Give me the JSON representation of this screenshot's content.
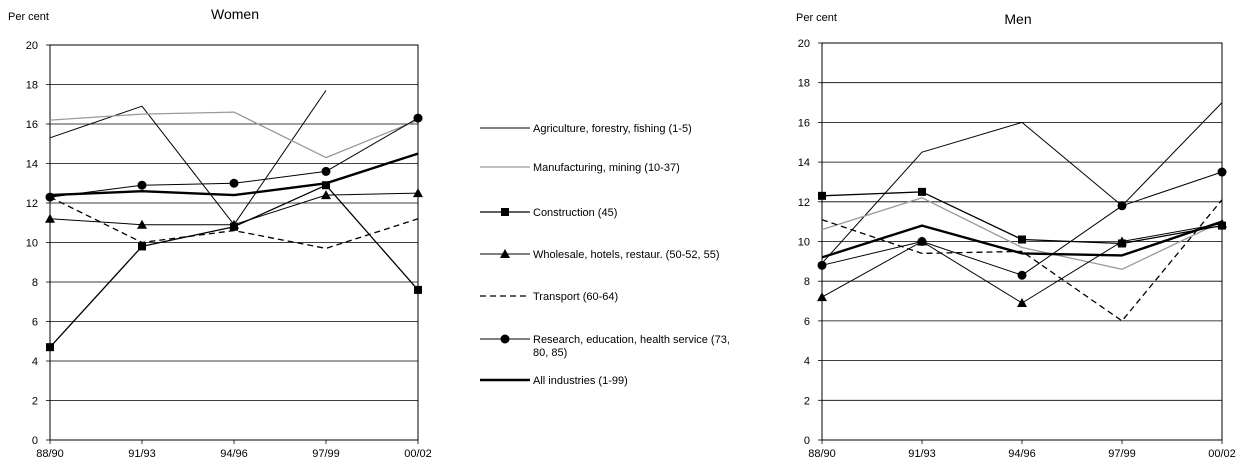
{
  "chart_data": [
    {
      "type": "line",
      "title": "Women",
      "ylabel": "Per cent",
      "categories": [
        "88/90",
        "91/93",
        "94/96",
        "97/99",
        "00/02"
      ],
      "ylim": [
        0,
        20
      ],
      "yticks": [
        0,
        2,
        4,
        6,
        8,
        10,
        12,
        14,
        16,
        18,
        20
      ],
      "grid": true,
      "series": [
        {
          "name": "Agriculture, forestry, fishing (1-5)",
          "values": [
            15.3,
            16.9,
            10.9,
            17.7,
            null
          ],
          "color": "#000000",
          "width": 1,
          "dash": "",
          "marker": "none"
        },
        {
          "name": "Manufacturing, mining (10-37)",
          "values": [
            16.2,
            16.5,
            16.6,
            14.3,
            16.2
          ],
          "color": "#999999",
          "width": 1.3,
          "dash": "",
          "marker": "none"
        },
        {
          "name": "Construction (45)",
          "values": [
            4.7,
            9.8,
            10.8,
            12.9,
            7.6
          ],
          "color": "#000000",
          "width": 1.3,
          "dash": "",
          "marker": "square"
        },
        {
          "name": "Wholesale, hotels, restaur. (50-52, 55)",
          "values": [
            11.2,
            10.9,
            10.9,
            12.4,
            12.5
          ],
          "color": "#000000",
          "width": 1,
          "dash": "",
          "marker": "triangle"
        },
        {
          "name": "Transport (60-64)",
          "values": [
            12.3,
            10.0,
            10.6,
            9.7,
            11.2
          ],
          "color": "#000000",
          "width": 1.3,
          "dash": "6,4",
          "marker": "none"
        },
        {
          "name": "Research, education, health service (73, 80, 85)",
          "values": [
            12.3,
            12.9,
            13.0,
            13.6,
            16.3
          ],
          "color": "#000000",
          "width": 1,
          "dash": "",
          "marker": "circle"
        },
        {
          "name": "All industries (1-99)",
          "values": [
            12.4,
            12.6,
            12.4,
            13.0,
            14.5
          ],
          "color": "#000000",
          "width": 2.4,
          "dash": "",
          "marker": "none"
        }
      ]
    },
    {
      "type": "line",
      "title": "Men",
      "ylabel": "Per cent",
      "categories": [
        "88/90",
        "91/93",
        "94/96",
        "97/99",
        "00/02"
      ],
      "ylim": [
        0,
        20
      ],
      "yticks": [
        0,
        2,
        4,
        6,
        8,
        10,
        12,
        14,
        16,
        18,
        20
      ],
      "grid": true,
      "series": [
        {
          "name": "Agriculture, forestry, fishing (1-5)",
          "values": [
            8.9,
            14.5,
            16.0,
            11.8,
            17.0
          ],
          "color": "#000000",
          "width": 1,
          "dash": "",
          "marker": "none"
        },
        {
          "name": "Manufacturing, mining (10-37)",
          "values": [
            10.6,
            12.2,
            9.7,
            8.6,
            11.0
          ],
          "color": "#999999",
          "width": 1.3,
          "dash": "",
          "marker": "none"
        },
        {
          "name": "Construction (45)",
          "values": [
            12.3,
            12.5,
            10.1,
            9.9,
            10.8
          ],
          "color": "#000000",
          "width": 1.3,
          "dash": "",
          "marker": "square"
        },
        {
          "name": "Wholesale, hotels, restaur. (50-52, 55)",
          "values": [
            7.2,
            10.0,
            6.9,
            10.0,
            10.9
          ],
          "color": "#000000",
          "width": 1,
          "dash": "",
          "marker": "triangle"
        },
        {
          "name": "Transport (60-64)",
          "values": [
            11.1,
            9.4,
            9.5,
            6.0,
            12.1
          ],
          "color": "#000000",
          "width": 1.3,
          "dash": "6,4",
          "marker": "none"
        },
        {
          "name": "Research, education, health service (73, 80, 85)",
          "values": [
            8.8,
            10.0,
            8.3,
            11.8,
            13.5
          ],
          "color": "#000000",
          "width": 1,
          "dash": "",
          "marker": "circle"
        },
        {
          "name": "All industries (1-99)",
          "values": [
            9.2,
            10.8,
            9.4,
            9.3,
            11.0
          ],
          "color": "#000000",
          "width": 2.4,
          "dash": "",
          "marker": "none"
        }
      ]
    }
  ],
  "legend": {
    "placement": "center",
    "items": [
      {
        "lines": [
          "Agriculture, forestry, fishing (1-5)"
        ],
        "color": "#000000",
        "width": 1,
        "dash": "",
        "marker": "none"
      },
      {
        "lines": [
          "Manufacturing, mining (10-37)"
        ],
        "color": "#999999",
        "width": 1.3,
        "dash": "",
        "marker": "none"
      },
      {
        "lines": [
          "Construction (45)"
        ],
        "color": "#000000",
        "width": 1.3,
        "dash": "",
        "marker": "square"
      },
      {
        "lines": [
          "Wholesale, hotels, restaur. (50-52, 55)"
        ],
        "color": "#000000",
        "width": 1,
        "dash": "",
        "marker": "triangle"
      },
      {
        "lines": [
          "Transport (60-64)"
        ],
        "color": "#000000",
        "width": 1.3,
        "dash": "6,4",
        "marker": "none"
      },
      {
        "lines": [
          "Research, education, health service (73,",
          "80, 85)"
        ],
        "color": "#000000",
        "width": 1,
        "dash": "",
        "marker": "circle"
      },
      {
        "lines": [
          "All industries (1-99)"
        ],
        "color": "#000000",
        "width": 2.4,
        "dash": "",
        "marker": "none"
      }
    ]
  }
}
